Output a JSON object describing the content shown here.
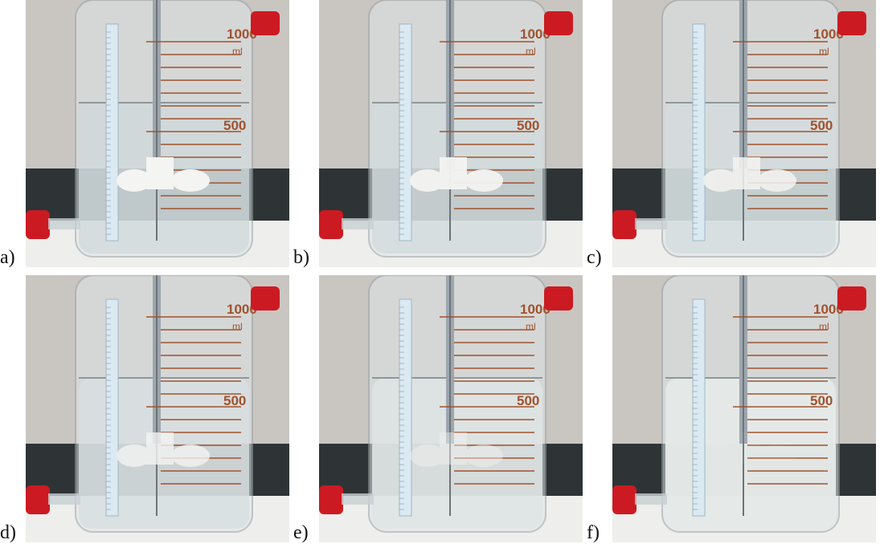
{
  "figure": {
    "panels": [
      {
        "label": "a)",
        "turbidity": 0.0,
        "impeller_visibility": 1.0
      },
      {
        "label": "b)",
        "turbidity": 0.1,
        "impeller_visibility": 0.95
      },
      {
        "label": "c)",
        "turbidity": 0.2,
        "impeller_visibility": 0.85
      },
      {
        "label": "d)",
        "turbidity": 0.3,
        "impeller_visibility": 0.8
      },
      {
        "label": "e)",
        "turbidity": 0.55,
        "impeller_visibility": 0.45
      },
      {
        "label": "f)",
        "turbidity": 0.85,
        "impeller_visibility": 0.05
      }
    ],
    "scale_labels": {
      "top": "1000",
      "unit": "ml",
      "mid": "500"
    },
    "colors": {
      "wall": "#c9c6c2",
      "dark_band": "#2e3436",
      "bench": "#eeeeec",
      "glass": "#dfe6e8",
      "liquid": "#cfd8db",
      "graduation": "#a0522d",
      "connector_red": "#cc1a22",
      "impeller": "#f4f4f2",
      "ruler": "#dbe9f2"
    }
  }
}
